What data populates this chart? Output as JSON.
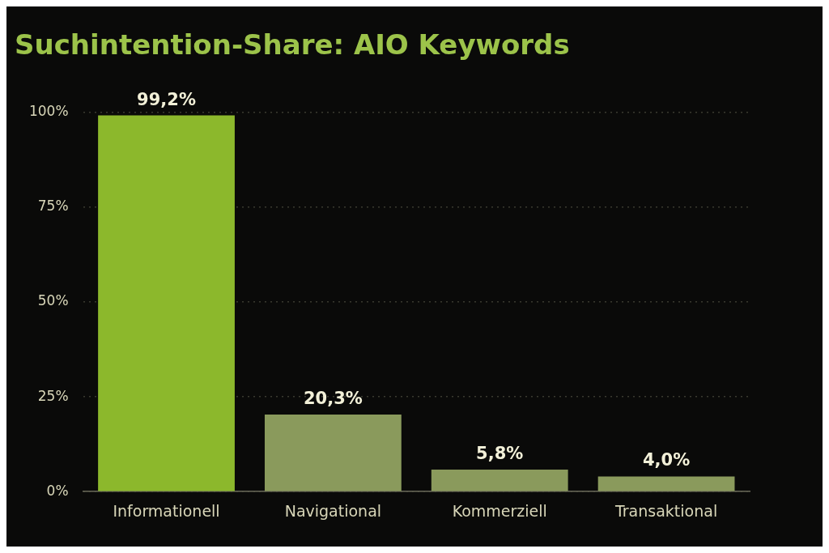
{
  "chart_data": {
    "type": "bar",
    "title": "Suchintention-Share: AIO Keywords",
    "categories": [
      "Informationell",
      "Navigational",
      "Kommerziell",
      "Transaktional"
    ],
    "values": [
      99.2,
      20.3,
      5.8,
      4.0
    ],
    "colors": [
      "#8cb82c",
      "#8a9a5c",
      "#8a9a5c",
      "#8a9a5c"
    ],
    "value_labels": [
      "99,2%",
      "20,3%",
      "5,8%",
      "4,0%"
    ],
    "ylim": [
      0,
      100
    ],
    "yticks": [
      {
        "value": 0,
        "label": "0%"
      },
      {
        "value": 25,
        "label": "25%"
      },
      {
        "value": 50,
        "label": "50%"
      },
      {
        "value": 75,
        "label": "75%"
      },
      {
        "value": 100,
        "label": "100%"
      }
    ],
    "grid": "y"
  }
}
